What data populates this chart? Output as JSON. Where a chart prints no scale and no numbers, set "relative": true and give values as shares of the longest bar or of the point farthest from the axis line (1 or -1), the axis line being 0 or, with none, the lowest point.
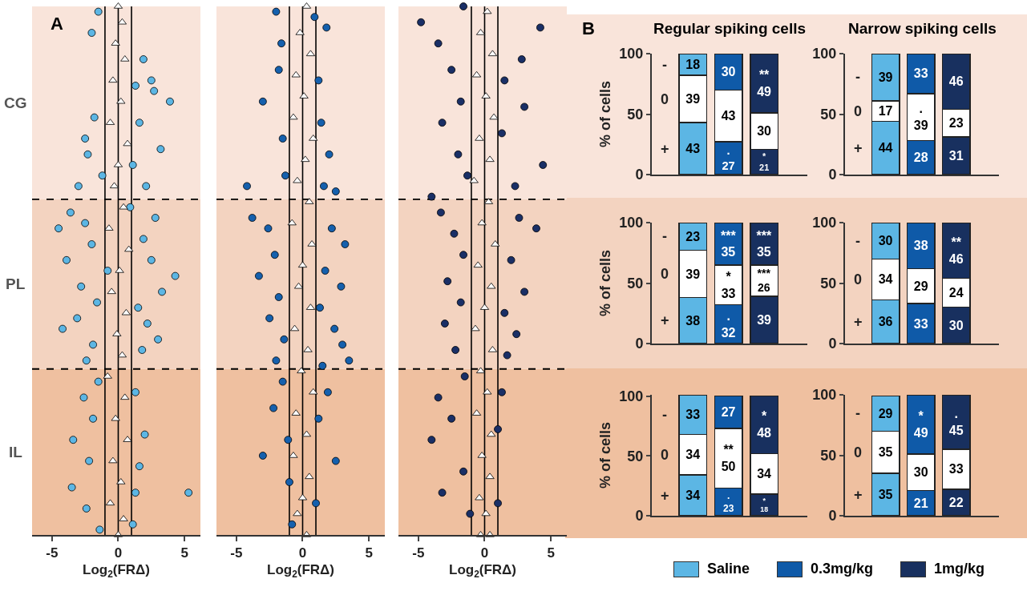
{
  "chart_data": [
    {
      "type": "scatter",
      "relative": true,
      "xlabel": "Log$_{2}$(FRΔ)",
      "xlim": [
        -6.5,
        6.2
      ],
      "xticks": [
        -5,
        0,
        5
      ],
      "tick_labels": "x",
      "annotations": [
        "A"
      ],
      "bands": [
        {
          "axis": "y",
          "from": 0.635,
          "to": 1,
          "label": "CG",
          "color": "#f9e4da"
        },
        {
          "axis": "y",
          "from": 0.314,
          "to": 0.635,
          "label": "PL",
          "color": "#f3d3c0"
        },
        {
          "axis": "y",
          "from": 0,
          "to": 0.314,
          "label": "IL",
          "color": "#efc0a0"
        }
      ],
      "ref_lines": [
        {
          "axis": "x",
          "value": -1
        },
        {
          "axis": "x",
          "value": 0
        },
        {
          "axis": "x",
          "value": 1
        },
        {
          "axis": "y",
          "value": 0.635,
          "line_style": "dashed"
        },
        {
          "axis": "y",
          "value": 0.314,
          "line_style": "dashed"
        }
      ],
      "series": [
        {
          "color": "#5cb6e4",
          "marker": "circle",
          "x": [
            -1.5,
            -2,
            1.9,
            2.5,
            1.3,
            2.7,
            3.9,
            -1.8,
            -2.5,
            1.6,
            3.2,
            -2.3,
            1.1,
            -1.2,
            2.1,
            -3.0,
            -3.6,
            -4.5,
            -2.5,
            2.8,
            -2.0,
            1.9,
            -3.9,
            2.5,
            4.3,
            -2.8,
            3.3,
            -1.6,
            1.5,
            -3.1,
            -4.2,
            2.2,
            -1.9,
            1.8,
            3.0,
            -2.4,
            -1.5,
            -2.6,
            1.3,
            -1.9,
            -3.4,
            2.0,
            -2.2,
            1.6,
            -3.5,
            1.3,
            5.3,
            -2.4,
            -1.4,
            1.1,
            -0.8,
            0.9
          ],
          "values": [
            0.99,
            0.95,
            0.9,
            0.86,
            0.85,
            0.84,
            0.82,
            0.79,
            0.75,
            0.78,
            0.73,
            0.72,
            0.7,
            0.68,
            0.66,
            0.66,
            0.61,
            0.58,
            0.59,
            0.6,
            0.55,
            0.56,
            0.52,
            0.52,
            0.49,
            0.47,
            0.46,
            0.44,
            0.43,
            0.41,
            0.39,
            0.4,
            0.36,
            0.35,
            0.37,
            0.33,
            0.29,
            0.26,
            0.27,
            0.22,
            0.18,
            0.19,
            0.14,
            0.13,
            0.09,
            0.08,
            0.08,
            0.05,
            0.01,
            0.02,
            0.5,
            0.62
          ]
        },
        {
          "color": "#ffffff",
          "marker": "triangle",
          "x": [
            0,
            0.3,
            -0.2,
            0.5,
            -0.4,
            0.2,
            -0.6,
            0.7,
            0,
            -0.3,
            0.4,
            -0.7,
            0.8,
            0.1,
            -0.5,
            0.6,
            -0.1,
            0.3,
            -0.8,
            0.5,
            -0.2,
            0.7,
            -0.4,
            0.2,
            -0.6,
            0.4,
            0
          ],
          "values": [
            1,
            0.97,
            0.93,
            0.9,
            0.86,
            0.82,
            0.78,
            0.74,
            0.7,
            0.66,
            0.62,
            0.58,
            0.54,
            0.5,
            0.46,
            0.42,
            0.38,
            0.34,
            0.3,
            0.26,
            0.22,
            0.18,
            0.14,
            0.1,
            0.06,
            0.03,
            0
          ]
        }
      ]
    },
    {
      "type": "scatter",
      "relative": true,
      "xlabel": "Log$_{2}$(FRΔ)",
      "xlim": [
        -6.5,
        6.2
      ],
      "xticks": [
        -5,
        0,
        5
      ],
      "tick_labels": "x",
      "bands": [
        {
          "axis": "y",
          "from": 0.635,
          "to": 1,
          "color": "#f9e4da"
        },
        {
          "axis": "y",
          "from": 0.314,
          "to": 0.635,
          "color": "#f3d3c0"
        },
        {
          "axis": "y",
          "from": 0,
          "to": 0.314,
          "color": "#efc0a0"
        }
      ],
      "ref_lines": [
        {
          "axis": "x",
          "value": -1
        },
        {
          "axis": "x",
          "value": 0
        },
        {
          "axis": "x",
          "value": 1
        },
        {
          "axis": "y",
          "value": 0.635,
          "line_style": "dashed"
        },
        {
          "axis": "y",
          "value": 0.314,
          "line_style": "dashed"
        }
      ],
      "series": [
        {
          "color": "#1560ad",
          "marker": "circle",
          "x": [
            -2,
            0.9,
            1.8,
            -1.6,
            -1.8,
            1.2,
            -3.0,
            1.4,
            -1.5,
            2.0,
            -1.3,
            1.6,
            -4.2,
            2.5,
            -3.8,
            -2.6,
            2.2,
            3.2,
            -2.1,
            1.7,
            -3.3,
            2.9,
            -1.8,
            1.3,
            -2.5,
            2.4,
            -1.4,
            3.0,
            -2.0,
            1.5,
            -1.5,
            1.9,
            -2.2,
            1.2,
            -1.1,
            2.5,
            -3.0,
            -1.0,
            1.0,
            -0.8,
            3.5
          ],
          "values": [
            0.99,
            0.98,
            0.96,
            0.93,
            0.88,
            0.86,
            0.82,
            0.78,
            0.75,
            0.72,
            0.68,
            0.66,
            0.66,
            0.65,
            0.6,
            0.58,
            0.58,
            0.55,
            0.53,
            0.5,
            0.49,
            0.47,
            0.45,
            0.43,
            0.41,
            0.39,
            0.37,
            0.36,
            0.33,
            0.32,
            0.29,
            0.27,
            0.24,
            0.22,
            0.18,
            0.14,
            0.15,
            0.1,
            0.06,
            0.02,
            0.33
          ]
        },
        {
          "color": "#ffffff",
          "marker": "triangle",
          "x": [
            0.3,
            -0.2,
            0.6,
            -0.5,
            0.1,
            -0.7,
            0.8,
            0.2,
            -0.4,
            0.5,
            -0.8,
            0.7,
            0,
            -0.3,
            0.6,
            -0.6,
            0.4,
            -0.1,
            0.8,
            -0.5,
            0.3,
            -0.7,
            0.5,
            0,
            -0.4,
            0.3
          ],
          "values": [
            1,
            0.95,
            0.91,
            0.87,
            0.83,
            0.79,
            0.75,
            0.71,
            0.67,
            0.63,
            0.59,
            0.55,
            0.51,
            0.47,
            0.43,
            0.39,
            0.35,
            0.31,
            0.27,
            0.23,
            0.19,
            0.15,
            0.11,
            0.07,
            0.04,
            0
          ]
        }
      ]
    },
    {
      "type": "scatter",
      "relative": true,
      "xlabel": "Log$_{2}$(FRΔ)",
      "xlim": [
        -6.5,
        6.2
      ],
      "xticks": [
        -5,
        0,
        5
      ],
      "tick_labels": "x",
      "bands": [
        {
          "axis": "y",
          "from": 0.635,
          "to": 1,
          "color": "#f9e4da"
        },
        {
          "axis": "y",
          "from": 0.314,
          "to": 0.635,
          "color": "#f3d3c0"
        },
        {
          "axis": "y",
          "from": 0,
          "to": 0.314,
          "color": "#efc0a0"
        }
      ],
      "ref_lines": [
        {
          "axis": "x",
          "value": -1
        },
        {
          "axis": "x",
          "value": 0
        },
        {
          "axis": "x",
          "value": 1
        },
        {
          "axis": "y",
          "value": 0.635,
          "line_style": "dashed"
        },
        {
          "axis": "y",
          "value": 0.314,
          "line_style": "dashed"
        }
      ],
      "series": [
        {
          "color": "#1a2f66",
          "marker": "circle",
          "x": [
            -4.8,
            -3.5,
            4.2,
            -1.6,
            2.8,
            -2.5,
            1.5,
            -1.8,
            3.0,
            -3.2,
            1.3,
            -2.0,
            4.4,
            -1.3,
            2.3,
            -4.0,
            -3.3,
            2.6,
            -2.3,
            3.9,
            -1.6,
            2.0,
            -2.8,
            3.0,
            -1.8,
            1.5,
            -3.0,
            2.4,
            -2.2,
            1.7,
            -1.5,
            1.3,
            -3.5,
            -2.5,
            1.0,
            -4.0,
            -1.6,
            -3.2,
            1.0,
            -1.1
          ],
          "values": [
            0.97,
            0.93,
            0.96,
            1,
            0.9,
            0.88,
            0.86,
            0.82,
            0.81,
            0.78,
            0.76,
            0.72,
            0.7,
            0.68,
            0.66,
            0.64,
            0.61,
            0.6,
            0.57,
            0.58,
            0.53,
            0.52,
            0.48,
            0.46,
            0.44,
            0.42,
            0.4,
            0.38,
            0.35,
            0.34,
            0.3,
            0.27,
            0.26,
            0.22,
            0.2,
            0.18,
            0.12,
            0.08,
            0.06,
            0.04
          ]
        },
        {
          "color": "#ffffff",
          "marker": "triangle",
          "x": [
            0.2,
            -0.3,
            0.6,
            -0.6,
            0.1,
            0.7,
            -0.4,
            0.4,
            -0.8,
            0.3,
            -0.2,
            0.8,
            -0.5,
            0.5,
            0,
            -0.7,
            0.6,
            -0.3,
            0.2,
            -0.6,
            0.5,
            -0.2,
            0.4,
            -0.4,
            0.1,
            -0.3,
            0.4
          ],
          "values": [
            0.99,
            0.95,
            0.91,
            0.87,
            0.83,
            0.79,
            0.75,
            0.71,
            0.67,
            0.63,
            0.59,
            0.55,
            0.51,
            0.47,
            0.43,
            0.39,
            0.35,
            0.31,
            0.27,
            0.23,
            0.19,
            0.15,
            0.11,
            0.07,
            0.04,
            0,
            0
          ]
        }
      ]
    },
    {
      "type": "bar",
      "stacked": true,
      "title": "Regular spiking cells",
      "ylabel": "% of cells",
      "annotations": [
        "B"
      ],
      "categories": [
        null,
        null,
        null
      ],
      "ylim": [
        0,
        100
      ],
      "yticks": [
        0,
        50,
        100
      ],
      "series": [
        {
          "name": "+",
          "colors": [
            "#5cb6e4",
            "#0f5aa8",
            "#18305f"
          ],
          "values": [
            43,
            27,
            21
          ],
          "value_labels": [
            "43",
            ".\n27",
            "*\n21"
          ]
        },
        {
          "name": "0",
          "color": "#ffffff",
          "values": [
            39,
            43,
            30
          ],
          "value_labels": [
            "39",
            "43",
            "30"
          ]
        },
        {
          "name": "-",
          "colors": [
            "#5cb6e4",
            "#0f5aa8",
            "#18305f"
          ],
          "values": [
            18,
            30,
            49
          ],
          "value_labels": [
            "18",
            "30",
            "**\n49"
          ]
        }
      ]
    },
    {
      "type": "bar",
      "stacked": true,
      "title": "Narrow spiking cells",
      "categories": [
        null,
        null,
        null
      ],
      "ylim": [
        0,
        100
      ],
      "yticks": [
        0,
        50,
        100
      ],
      "series": [
        {
          "name": "+",
          "colors": [
            "#5cb6e4",
            "#0f5aa8",
            "#18305f"
          ],
          "values": [
            44,
            28,
            31
          ],
          "value_labels": [
            "44",
            "28",
            "31"
          ]
        },
        {
          "name": "0",
          "color": "#ffffff",
          "values": [
            17,
            39,
            23
          ],
          "value_labels": [
            "17",
            ".\n39",
            "23"
          ]
        },
        {
          "name": "-",
          "colors": [
            "#5cb6e4",
            "#0f5aa8",
            "#18305f"
          ],
          "values": [
            39,
            33,
            46
          ],
          "value_labels": [
            "39",
            "33",
            "46"
          ]
        }
      ]
    },
    {
      "type": "bar",
      "stacked": true,
      "ylabel": "% of cells",
      "categories": [
        null,
        null,
        null
      ],
      "ylim": [
        0,
        100
      ],
      "yticks": [
        0,
        50,
        100
      ],
      "series": [
        {
          "name": "+",
          "colors": [
            "#5cb6e4",
            "#0f5aa8",
            "#18305f"
          ],
          "values": [
            38,
            32,
            39
          ],
          "value_labels": [
            "38",
            ".\n32",
            "39"
          ]
        },
        {
          "name": "0",
          "color": "#ffffff",
          "values": [
            39,
            33,
            26
          ],
          "value_labels": [
            "39",
            "*\n33",
            "***\n26"
          ]
        },
        {
          "name": "-",
          "colors": [
            "#5cb6e4",
            "#0f5aa8",
            "#18305f"
          ],
          "values": [
            23,
            35,
            35
          ],
          "value_labels": [
            "23",
            "***\n35",
            "***\n35"
          ]
        }
      ]
    },
    {
      "type": "bar",
      "stacked": true,
      "categories": [
        null,
        null,
        null
      ],
      "ylim": [
        0,
        100
      ],
      "yticks": [
        0,
        50,
        100
      ],
      "series": [
        {
          "name": "+",
          "colors": [
            "#5cb6e4",
            "#0f5aa8",
            "#18305f"
          ],
          "values": [
            36,
            33,
            30
          ],
          "value_labels": [
            "36",
            "33",
            "30"
          ]
        },
        {
          "name": "0",
          "color": "#ffffff",
          "values": [
            34,
            29,
            24
          ],
          "value_labels": [
            "34",
            "29",
            "24"
          ]
        },
        {
          "name": "-",
          "colors": [
            "#5cb6e4",
            "#0f5aa8",
            "#18305f"
          ],
          "values": [
            30,
            38,
            46
          ],
          "value_labels": [
            "30",
            "38",
            "**\n46"
          ]
        }
      ]
    },
    {
      "type": "bar",
      "stacked": true,
      "ylabel": "% of cells",
      "categories": [
        null,
        null,
        null
      ],
      "ylim": [
        0,
        101
      ],
      "yticks": [
        0,
        50,
        100
      ],
      "series": [
        {
          "name": "+",
          "colors": [
            "#5cb6e4",
            "#0f5aa8",
            "#18305f"
          ],
          "values": [
            34,
            23,
            18
          ],
          "value_labels": [
            "34",
            ".\n23",
            "*\n18"
          ]
        },
        {
          "name": "0",
          "color": "#ffffff",
          "values": [
            34,
            50,
            34
          ],
          "value_labels": [
            "34",
            "**\n50",
            "34"
          ]
        },
        {
          "name": "-",
          "colors": [
            "#5cb6e4",
            "#0f5aa8",
            "#18305f"
          ],
          "values": [
            33,
            27,
            48
          ],
          "value_labels": [
            "33",
            "27",
            "*\n48"
          ]
        }
      ]
    },
    {
      "type": "bar",
      "stacked": true,
      "categories": [
        null,
        null,
        null
      ],
      "ylim": [
        0,
        100
      ],
      "yticks": [
        0,
        50,
        100
      ],
      "series": [
        {
          "name": "+",
          "colors": [
            "#5cb6e4",
            "#0f5aa8",
            "#18305f"
          ],
          "values": [
            35,
            21,
            22
          ],
          "value_labels": [
            "35",
            "21",
            "22"
          ]
        },
        {
          "name": "0",
          "color": "#ffffff",
          "values": [
            35,
            30,
            33
          ],
          "value_labels": [
            "35",
            "30",
            "33"
          ]
        },
        {
          "name": "-",
          "colors": [
            "#5cb6e4",
            "#0f5aa8",
            "#18305f"
          ],
          "values": [
            29,
            49,
            45
          ],
          "value_labels": [
            "29",
            "*\n49",
            ".\n45"
          ]
        }
      ]
    },
    {
      "type": "other",
      "categories": [
        "Saline",
        "0.3mg/kg",
        "1mg/kg"
      ],
      "colors": [
        "#5cb6e4",
        "#0f5aa8",
        "#18305f"
      ]
    }
  ]
}
